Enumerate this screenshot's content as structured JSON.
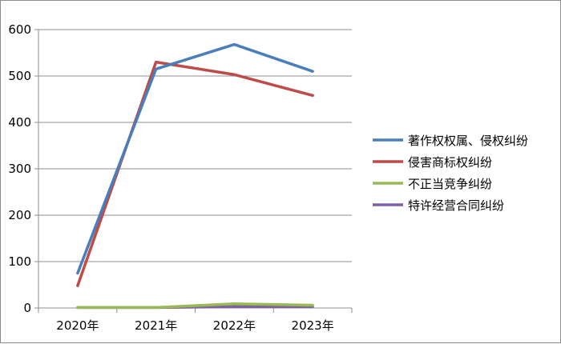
{
  "chart_data": {
    "type": "line",
    "categories": [
      "2020年",
      "2021年",
      "2022年",
      "2023年"
    ],
    "series": [
      {
        "name": "著作权权属、侵权纠纷",
        "values": [
          75,
          515,
          568,
          510
        ],
        "color": "#4a7ebb"
      },
      {
        "name": "侵害商标权纠纷",
        "values": [
          48,
          530,
          503,
          458
        ],
        "color": "#be4b48"
      },
      {
        "name": "不正当竞争纠纷",
        "values": [
          1,
          1,
          9,
          6
        ],
        "color": "#98b954"
      },
      {
        "name": "特许经营合同纠纷",
        "values": [
          1,
          1,
          3,
          3
        ],
        "color": "#7d60a0"
      }
    ],
    "title": "",
    "xlabel": "",
    "ylabel": "",
    "ylim": [
      0,
      600
    ],
    "yticks": [
      "0",
      "100",
      "200",
      "300",
      "400",
      "500",
      "600"
    ],
    "grid": true,
    "legend_position": "right"
  }
}
